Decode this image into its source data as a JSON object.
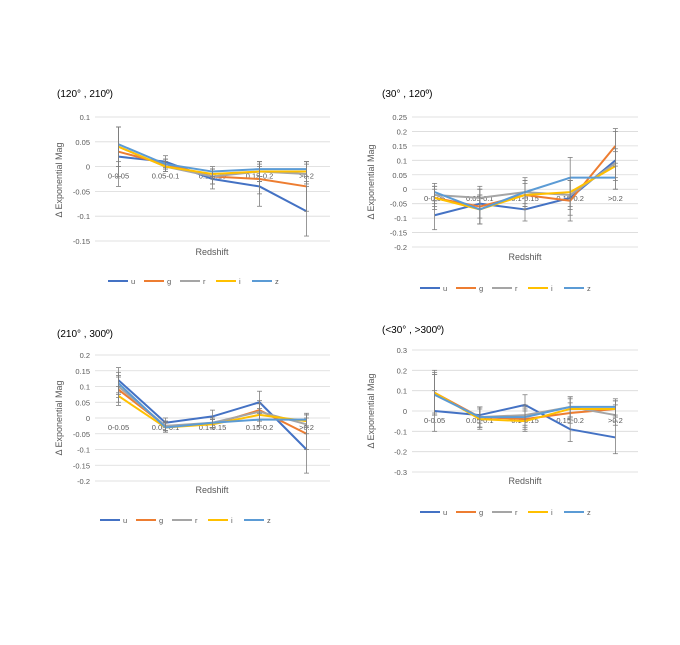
{
  "chart_data": [
    {
      "type": "line",
      "title": "(120° , 210º)",
      "xlabel": "Redshift",
      "ylabel": "Δ Exponential Mag",
      "categories": [
        "0-0.05",
        "0.05-0.1",
        "0.1-0.15",
        "0.15-0.2",
        ">0.2"
      ],
      "ylim": [
        -0.15,
        0.1
      ],
      "yticks": [
        -0.15,
        -0.1,
        -0.05,
        0,
        0.05,
        0.1
      ],
      "tick_labels": [
        "-0.15",
        "-0.1",
        "-0.05",
        "0",
        "0.05",
        "0.1"
      ],
      "legend": "bottom",
      "series": [
        {
          "name": "u",
          "color": "#4472c4",
          "values": [
            0.02,
            0.01,
            -0.025,
            -0.04,
            -0.09
          ],
          "errors": [
            0.06,
            0.012,
            0.02,
            0.04,
            0.05
          ]
        },
        {
          "name": "g",
          "color": "#ed7d31",
          "values": [
            0.03,
            0.005,
            -0.02,
            -0.025,
            -0.04
          ],
          "errors": [
            0.05,
            0.01,
            0.015,
            0.03,
            0.05
          ]
        },
        {
          "name": "r",
          "color": "#a5a5a5",
          "values": [
            0.04,
            0.0,
            -0.02,
            -0.01,
            -0.015
          ],
          "errors": [
            0.04,
            0.01,
            0.015,
            0.02,
            0.02
          ]
        },
        {
          "name": "i",
          "color": "#ffc000",
          "values": [
            0.04,
            0.0,
            -0.015,
            -0.01,
            -0.01
          ],
          "errors": [
            0.04,
            0.01,
            0.01,
            0.02,
            0.02
          ]
        },
        {
          "name": "z",
          "color": "#5b9bd5",
          "values": [
            0.045,
            0.005,
            -0.01,
            -0.005,
            -0.005
          ],
          "errors": [
            0.035,
            0.01,
            0.01,
            0.015,
            0.015
          ]
        }
      ]
    },
    {
      "type": "line",
      "title": "(30° , 120º)",
      "xlabel": "Redshift",
      "ylabel": "Δ Exponential Mag",
      "categories": [
        "0-0.05",
        "0.05-0.1",
        "0.1-0.15",
        "0.15-0.2",
        ">0.2"
      ],
      "ylim": [
        -0.2,
        0.25
      ],
      "yticks": [
        -0.2,
        -0.15,
        -0.1,
        -0.05,
        0,
        0.05,
        0.1,
        0.15,
        0.2,
        0.25
      ],
      "tick_labels": [
        "-0.2",
        "-0.15",
        "-0.1",
        "-0.05",
        "0",
        "0.05",
        "0.1",
        "0.15",
        "0.2",
        "0.25"
      ],
      "legend": "bottom",
      "series": [
        {
          "name": "u",
          "color": "#4472c4",
          "values": [
            -0.09,
            -0.05,
            -0.07,
            -0.03,
            0.1
          ],
          "errors": [
            0.05,
            0.05,
            0.04,
            0.06,
            0.1
          ]
        },
        {
          "name": "g",
          "color": "#ed7d31",
          "values": [
            -0.03,
            -0.06,
            -0.02,
            -0.04,
            0.15
          ],
          "errors": [
            0.04,
            0.06,
            0.05,
            0.07,
            0.06
          ]
        },
        {
          "name": "r",
          "color": "#a5a5a5",
          "values": [
            -0.02,
            -0.03,
            -0.01,
            -0.02,
            0.09
          ],
          "errors": [
            0.03,
            0.04,
            0.04,
            0.05,
            0.05
          ]
        },
        {
          "name": "i",
          "color": "#ffc000",
          "values": [
            -0.03,
            -0.07,
            -0.02,
            -0.01,
            0.08
          ],
          "errors": [
            0.03,
            0.05,
            0.04,
            0.05,
            0.05
          ]
        },
        {
          "name": "z",
          "color": "#5b9bd5",
          "values": [
            -0.01,
            -0.07,
            -0.01,
            0.04,
            0.04
          ],
          "errors": [
            0.03,
            0.05,
            0.05,
            0.07,
            0.04
          ]
        }
      ]
    },
    {
      "type": "line",
      "title": "(210° , 300º)",
      "xlabel": "Redshift",
      "ylabel": "Δ Exponential Mag",
      "categories": [
        "0-0.05",
        "0.05-0.1",
        "0.1-0.15",
        "0.15-0.2",
        ">0.2"
      ],
      "ylim": [
        -0.2,
        0.2
      ],
      "yticks": [
        -0.2,
        -0.15,
        -0.1,
        -0.05,
        0,
        0.05,
        0.1,
        0.15,
        0.2
      ],
      "tick_labels": [
        "-0.2",
        "-0.15",
        "-0.1",
        "-0.05",
        "0",
        "0.05",
        "0.1",
        "0.15",
        "0.2"
      ],
      "legend": "bottom",
      "series": [
        {
          "name": "u",
          "color": "#4472c4",
          "values": [
            0.12,
            -0.015,
            0.005,
            0.05,
            -0.1
          ],
          "errors": [
            0.04,
            0.015,
            0.02,
            0.035,
            0.075
          ]
        },
        {
          "name": "g",
          "color": "#ed7d31",
          "values": [
            0.09,
            -0.025,
            -0.02,
            0.025,
            -0.05
          ],
          "errors": [
            0.04,
            0.015,
            0.015,
            0.03,
            0.05
          ]
        },
        {
          "name": "r",
          "color": "#a5a5a5",
          "values": [
            0.1,
            -0.025,
            -0.015,
            0.02,
            -0.02
          ],
          "errors": [
            0.035,
            0.015,
            0.015,
            0.025,
            0.03
          ]
        },
        {
          "name": "i",
          "color": "#ffc000",
          "values": [
            0.07,
            -0.03,
            -0.02,
            0.01,
            -0.01
          ],
          "errors": [
            0.03,
            0.015,
            0.015,
            0.02,
            0.02
          ]
        },
        {
          "name": "z",
          "color": "#5b9bd5",
          "values": [
            0.11,
            -0.03,
            -0.015,
            -0.005,
            -0.005
          ],
          "errors": [
            0.035,
            0.015,
            0.015,
            0.02,
            0.02
          ]
        }
      ]
    },
    {
      "type": "line",
      "title": "(<30° , >300º)",
      "xlabel": "Redshift",
      "ylabel": "Δ Exponential Mag",
      "categories": [
        "0-0.05",
        "0.05-0.1",
        "0.1-0.15",
        "0.15-0.2",
        ">0.2"
      ],
      "ylim": [
        -0.3,
        0.3
      ],
      "yticks": [
        -0.3,
        -0.2,
        -0.1,
        0,
        0.1,
        0.2,
        0.3
      ],
      "tick_labels": [
        "-0.3",
        "-0.2",
        "-0.1",
        "0",
        "0.1",
        "0.2",
        "0.3"
      ],
      "legend": "bottom",
      "series": [
        {
          "name": "u",
          "color": "#4472c4",
          "values": [
            0.0,
            -0.02,
            0.03,
            -0.09,
            -0.13
          ],
          "errors": [
            0.1,
            0.04,
            0.05,
            0.06,
            0.08
          ]
        },
        {
          "name": "g",
          "color": "#ed7d31",
          "values": [
            0.09,
            -0.03,
            -0.04,
            -0.01,
            0.01
          ],
          "errors": [
            0.11,
            0.05,
            0.05,
            0.05,
            0.04
          ]
        },
        {
          "name": "r",
          "color": "#a5a5a5",
          "values": [
            0.08,
            -0.03,
            -0.02,
            0.02,
            -0.02
          ],
          "errors": [
            0.1,
            0.05,
            0.05,
            0.05,
            0.05
          ]
        },
        {
          "name": "i",
          "color": "#ffc000",
          "values": [
            0.09,
            -0.04,
            -0.05,
            0.01,
            0.01
          ],
          "errors": [
            0.1,
            0.05,
            0.05,
            0.05,
            0.04
          ]
        },
        {
          "name": "z",
          "color": "#5b9bd5",
          "values": [
            0.08,
            -0.03,
            -0.03,
            0.02,
            0.02
          ],
          "errors": [
            0.1,
            0.05,
            0.05,
            0.05,
            0.04
          ]
        }
      ]
    }
  ]
}
